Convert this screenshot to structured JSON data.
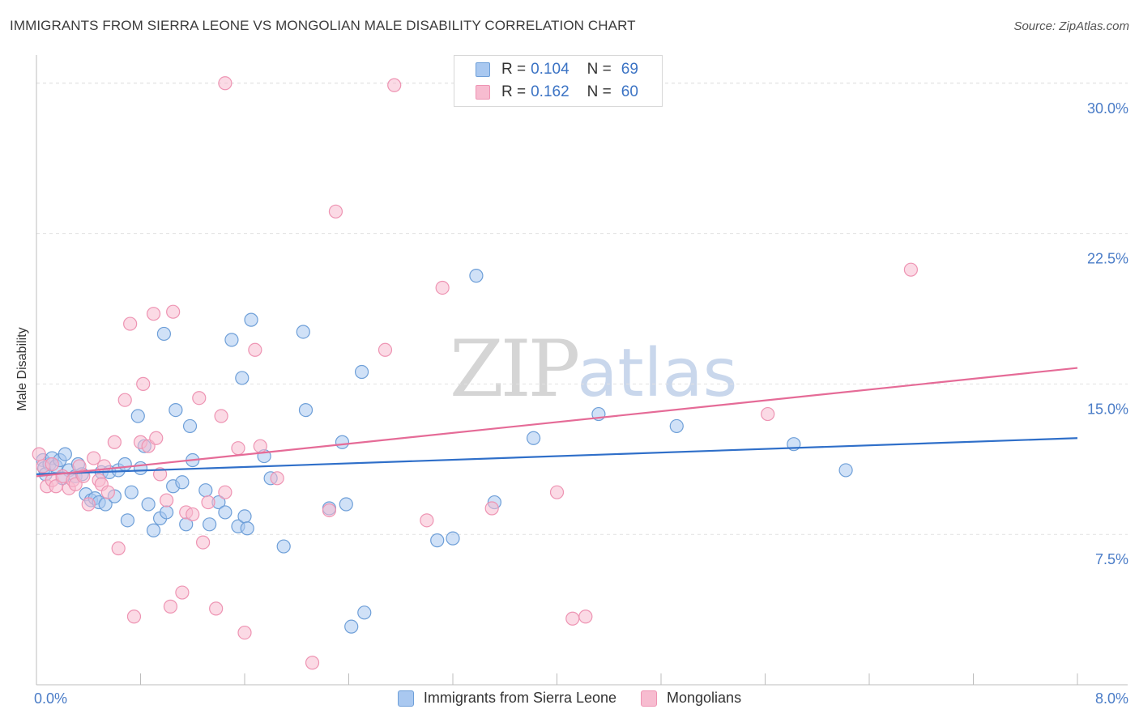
{
  "title": "IMMIGRANTS FROM SIERRA LEONE VS MONGOLIAN MALE DISABILITY CORRELATION CHART",
  "source": "Source: ZipAtlas.com",
  "watermark": {
    "zip": "ZIP",
    "atlas": "atlas"
  },
  "legend": {
    "r_label": "R =",
    "n_label": "N =",
    "series": [
      {
        "r": "0.104",
        "n": "69"
      },
      {
        "r": "0.162",
        "n": "60"
      }
    ]
  },
  "bottom_legend": [
    "Immigrants from Sierra Leone",
    "Mongolians"
  ],
  "colors": {
    "blue_fill": "#a9c8f0",
    "blue_stroke": "#6e9fd8",
    "blue_line": "#2f6fc9",
    "pink_fill": "#f7bcd0",
    "pink_stroke": "#ee94b3",
    "pink_line": "#e56b97",
    "tick_text": "#4a7cc7",
    "grid": "#e2e2e2"
  },
  "chart_data": {
    "type": "scatter",
    "title": "IMMIGRANTS FROM SIERRA LEONE VS MONGOLIAN MALE DISABILITY CORRELATION CHART",
    "xlabel": "",
    "ylabel": "Male Disability",
    "xlim": [
      0,
      8
    ],
    "ylim": [
      0,
      31
    ],
    "x_tick_labels": [
      {
        "value": 0,
        "label": "0.0%"
      },
      {
        "value": 8,
        "label": "8.0%"
      }
    ],
    "y_tick_labels": [
      {
        "value": 7.5,
        "label": "7.5%"
      },
      {
        "value": 15,
        "label": "15.0%"
      },
      {
        "value": 22.5,
        "label": "22.5%"
      },
      {
        "value": 30,
        "label": "30.0%"
      }
    ],
    "x_minor_ticks": [
      0.8,
      1.6,
      2.4,
      3.2,
      4.0,
      4.8,
      5.6,
      6.4,
      7.2,
      8.0
    ],
    "series": [
      {
        "name": "Immigrants from Sierra Leone",
        "trend": {
          "x": [
            0,
            8
          ],
          "y": [
            10.5,
            12.3
          ]
        },
        "points": [
          [
            0.05,
            11.2
          ],
          [
            0.06,
            10.8
          ],
          [
            0.1,
            11.0
          ],
          [
            0.12,
            11.3
          ],
          [
            0.15,
            10.9
          ],
          [
            0.18,
            11.2
          ],
          [
            0.22,
            11.5
          ],
          [
            0.25,
            10.7
          ],
          [
            0.3,
            10.4
          ],
          [
            0.32,
            11.0
          ],
          [
            0.35,
            10.5
          ],
          [
            0.38,
            9.5
          ],
          [
            0.42,
            9.2
          ],
          [
            0.45,
            9.3
          ],
          [
            0.48,
            9.1
          ],
          [
            0.5,
            10.6
          ],
          [
            0.53,
            9.0
          ],
          [
            0.56,
            10.6
          ],
          [
            0.6,
            9.4
          ],
          [
            0.63,
            10.7
          ],
          [
            0.68,
            11.0
          ],
          [
            0.7,
            8.2
          ],
          [
            0.73,
            9.6
          ],
          [
            0.78,
            13.4
          ],
          [
            0.8,
            10.8
          ],
          [
            0.83,
            11.9
          ],
          [
            0.86,
            9.0
          ],
          [
            0.9,
            7.7
          ],
          [
            0.95,
            8.3
          ],
          [
            0.98,
            17.5
          ],
          [
            1.0,
            8.6
          ],
          [
            1.05,
            9.9
          ],
          [
            1.07,
            13.7
          ],
          [
            1.12,
            10.1
          ],
          [
            1.15,
            8.0
          ],
          [
            1.18,
            12.9
          ],
          [
            1.2,
            11.2
          ],
          [
            1.3,
            9.7
          ],
          [
            1.33,
            8.0
          ],
          [
            1.4,
            9.1
          ],
          [
            1.45,
            8.6
          ],
          [
            1.5,
            17.2
          ],
          [
            1.55,
            7.9
          ],
          [
            1.58,
            15.3
          ],
          [
            1.6,
            8.4
          ],
          [
            1.62,
            7.8
          ],
          [
            1.65,
            18.2
          ],
          [
            1.75,
            11.4
          ],
          [
            1.8,
            10.3
          ],
          [
            1.9,
            6.9
          ],
          [
            2.05,
            17.6
          ],
          [
            2.07,
            13.7
          ],
          [
            2.25,
            8.8
          ],
          [
            2.35,
            12.1
          ],
          [
            2.38,
            9.0
          ],
          [
            2.42,
            2.9
          ],
          [
            2.5,
            15.6
          ],
          [
            2.52,
            3.6
          ],
          [
            3.08,
            7.2
          ],
          [
            3.2,
            7.3
          ],
          [
            3.38,
            20.4
          ],
          [
            3.52,
            9.1
          ],
          [
            3.82,
            12.3
          ],
          [
            4.32,
            13.5
          ],
          [
            4.92,
            12.9
          ],
          [
            5.82,
            12.0
          ],
          [
            6.22,
            10.7
          ],
          [
            0.07,
            10.5
          ],
          [
            0.2,
            10.3
          ]
        ]
      },
      {
        "name": "Mongolians",
        "trend": {
          "x": [
            0,
            8
          ],
          "y": [
            10.4,
            15.8
          ]
        },
        "points": [
          [
            0.02,
            11.5
          ],
          [
            0.05,
            10.9
          ],
          [
            0.08,
            9.9
          ],
          [
            0.12,
            10.2
          ],
          [
            0.15,
            9.9
          ],
          [
            0.2,
            10.4
          ],
          [
            0.25,
            9.8
          ],
          [
            0.28,
            10.2
          ],
          [
            0.3,
            10.0
          ],
          [
            0.33,
            10.9
          ],
          [
            0.36,
            10.4
          ],
          [
            0.4,
            9.0
          ],
          [
            0.44,
            11.3
          ],
          [
            0.48,
            10.2
          ],
          [
            0.5,
            10.0
          ],
          [
            0.52,
            10.9
          ],
          [
            0.55,
            9.6
          ],
          [
            0.6,
            12.1
          ],
          [
            0.63,
            6.8
          ],
          [
            0.68,
            14.2
          ],
          [
            0.72,
            18.0
          ],
          [
            0.75,
            3.4
          ],
          [
            0.8,
            12.1
          ],
          [
            0.82,
            15.0
          ],
          [
            0.86,
            11.9
          ],
          [
            0.9,
            18.5
          ],
          [
            0.92,
            12.3
          ],
          [
            0.95,
            10.5
          ],
          [
            1.0,
            9.2
          ],
          [
            1.03,
            3.9
          ],
          [
            1.05,
            18.6
          ],
          [
            1.12,
            4.6
          ],
          [
            1.15,
            8.6
          ],
          [
            1.2,
            8.5
          ],
          [
            1.25,
            14.3
          ],
          [
            1.28,
            7.1
          ],
          [
            1.32,
            9.1
          ],
          [
            1.38,
            3.8
          ],
          [
            1.42,
            13.4
          ],
          [
            1.45,
            9.6
          ],
          [
            1.55,
            11.8
          ],
          [
            1.6,
            2.6
          ],
          [
            1.68,
            16.7
          ],
          [
            1.72,
            11.9
          ],
          [
            1.85,
            10.3
          ],
          [
            2.12,
            1.1
          ],
          [
            2.25,
            8.7
          ],
          [
            2.3,
            23.6
          ],
          [
            3.0,
            8.2
          ],
          [
            3.12,
            19.8
          ],
          [
            3.5,
            8.8
          ],
          [
            4.0,
            9.6
          ],
          [
            4.12,
            3.3
          ],
          [
            4.22,
            3.4
          ],
          [
            5.62,
            13.5
          ],
          [
            6.72,
            20.7
          ],
          [
            1.45,
            30.0
          ],
          [
            2.75,
            29.9
          ],
          [
            2.68,
            16.7
          ],
          [
            0.12,
            11.0
          ]
        ]
      }
    ]
  }
}
